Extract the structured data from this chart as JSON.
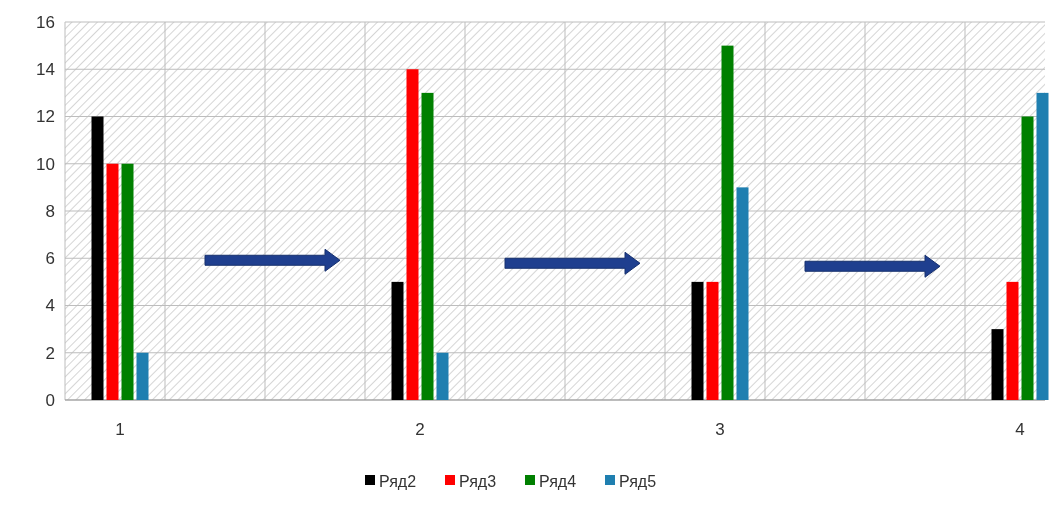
{
  "chart_data": {
    "type": "bar",
    "categories": [
      "1",
      "2",
      "3",
      "4"
    ],
    "series": [
      {
        "name": "Ряд2",
        "color": "#000000",
        "values": [
          12,
          5,
          5,
          3
        ]
      },
      {
        "name": "Ряд3",
        "color": "#ff0000",
        "values": [
          10,
          14,
          5,
          5
        ]
      },
      {
        "name": "Ряд4",
        "color": "#008000",
        "values": [
          10,
          13,
          15,
          12
        ]
      },
      {
        "name": "Ряд5",
        "color": "#1f7fb0",
        "values": [
          2,
          2,
          9,
          13
        ]
      }
    ],
    "ylim": [
      0,
      16
    ],
    "yticks": [
      0,
      2,
      4,
      6,
      8,
      10,
      12,
      14,
      16
    ],
    "grid": "y",
    "legend": "bottom"
  }
}
